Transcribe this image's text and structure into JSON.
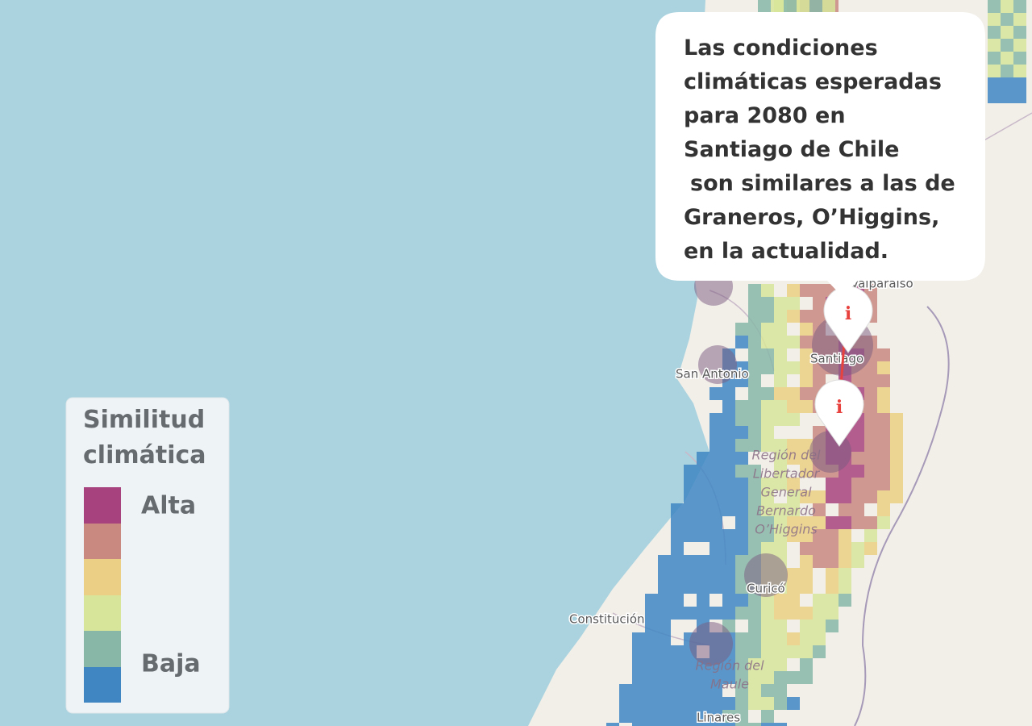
{
  "popup": {
    "lines": [
      "Las condiciones",
      "climáticas esperadas",
      "para 2080 en",
      "Santiago de Chile",
      "son similares a las de",
      "Graneros, O’Higgins,",
      "en la actualidad."
    ]
  },
  "legend": {
    "title": [
      "Similitud",
      "climática"
    ],
    "high": "Alta",
    "low": "Baja"
  },
  "map_labels": {
    "valparaiso": "Valparaíso",
    "santiago": "Santiago",
    "san_antonio": "San Antonio",
    "curico": "Curicó",
    "constitucion": "Constitución",
    "linares": "Linares",
    "region_ohiggins": [
      "Región del",
      "Libertador",
      "General",
      "Bernardo",
      "O’Higgins"
    ],
    "region_maule": [
      "Región del",
      "Maule"
    ]
  },
  "pins": [
    {
      "icon": "i"
    },
    {
      "icon": "i"
    }
  ]
}
